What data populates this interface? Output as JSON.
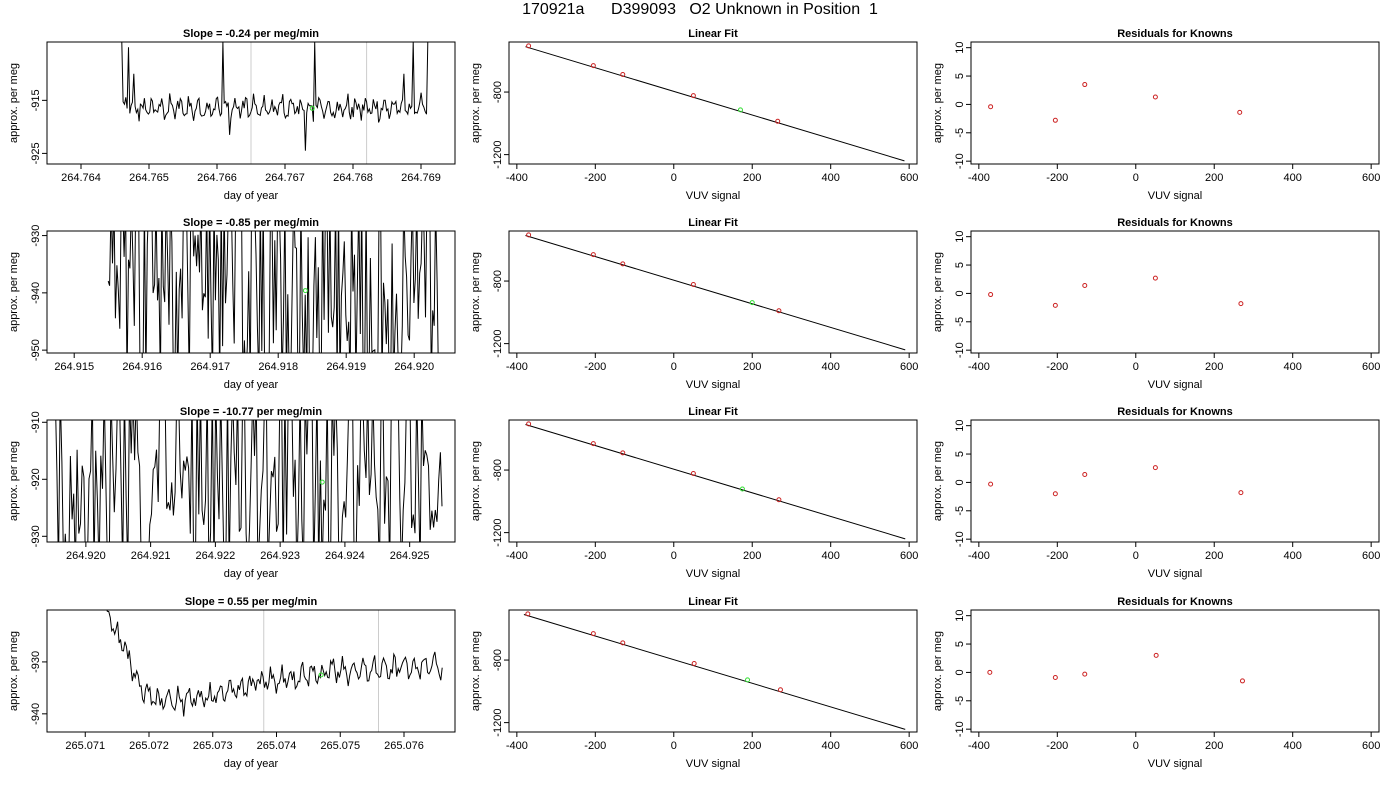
{
  "main_title": "170921a      D399093   O2 Unknown in Position  1",
  "colors": {
    "trace": "#000000",
    "fit_line": "#000000",
    "known_points": "#cc2222",
    "unknown_point": "#33dd33",
    "window_lines": "#cccccc",
    "frame": "#000000"
  },
  "chart_data": [
    {
      "type": "line",
      "title": "Slope =  -0.24  per meg/min",
      "xlabel": "day of year",
      "ylabel": "approx. per meg",
      "xlim": [
        264.7635,
        264.7695
      ],
      "ylim": [
        -927,
        -904
      ],
      "xticks": [
        264.764,
        264.765,
        264.766,
        264.767,
        264.768,
        264.769
      ],
      "xtick_labels": [
        "264.764",
        "264.765",
        "264.766",
        "264.767",
        "264.768",
        "264.769"
      ],
      "yticks": [
        -925,
        -915
      ],
      "ytick_labels": [
        "-925",
        "-915"
      ],
      "window_lines_x": [
        264.7665,
        264.7682
      ],
      "unknown_point": {
        "x": 264.7674,
        "y": -916.5
      },
      "trace": {
        "x_start": 264.7646,
        "x_end": 264.7691,
        "base": -916.5,
        "amp": 2.2,
        "spikes": [
          [
            0.0,
            -904
          ],
          [
            0.02,
            -905
          ],
          [
            0.04,
            -910
          ],
          [
            0.33,
            -904
          ],
          [
            0.35,
            -921.5
          ],
          [
            0.6,
            -924.5
          ],
          [
            0.63,
            -904
          ],
          [
            0.92,
            -910
          ],
          [
            0.95,
            -904
          ],
          [
            1.0,
            -904
          ]
        ]
      }
    },
    {
      "type": "scatter",
      "title": "Linear Fit",
      "xlabel": "VUV signal",
      "ylabel": "approx. per meg",
      "xlim": [
        -420,
        620
      ],
      "ylim": [
        -1260,
        -480
      ],
      "xticks": [
        -400,
        -200,
        0,
        200,
        400,
        600
      ],
      "xtick_labels": [
        "-400",
        "-200",
        "0",
        "200",
        "400",
        "600"
      ],
      "yticks": [
        -1200,
        -800
      ],
      "ytick_labels": [
        "-1200",
        "-800"
      ],
      "fit_line": {
        "x1": -378,
        "y1": -510,
        "x2": 588,
        "y2": -1240
      },
      "knowns": [
        {
          "x": -370,
          "y": -505
        },
        {
          "x": -205,
          "y": -631
        },
        {
          "x": -130,
          "y": -688
        },
        {
          "x": 50,
          "y": -823
        },
        {
          "x": 265,
          "y": -987
        }
      ],
      "unknown": {
        "x": 170,
        "y": -914
      }
    },
    {
      "type": "scatter",
      "title": "Residuals for Knowns",
      "xlabel": "VUV signal",
      "ylabel": "approx. per meg",
      "xlim": [
        -420,
        620
      ],
      "ylim": [
        -10.5,
        11
      ],
      "xticks": [
        -400,
        -200,
        0,
        200,
        400,
        600
      ],
      "xtick_labels": [
        "-400",
        "-200",
        "0",
        "200",
        "400",
        "600"
      ],
      "yticks": [
        -10,
        -5,
        0,
        5,
        10
      ],
      "ytick_labels": [
        "-10",
        "-5",
        "0",
        "5",
        "10"
      ],
      "knowns": [
        {
          "x": -370,
          "y": -0.4
        },
        {
          "x": -205,
          "y": -2.8
        },
        {
          "x": -130,
          "y": 3.5
        },
        {
          "x": 50,
          "y": 1.3
        },
        {
          "x": 265,
          "y": -1.4
        }
      ]
    },
    {
      "type": "line",
      "title": "Slope =  -0.85  per meg/min",
      "xlabel": "day of year",
      "ylabel": "approx. per meg",
      "xlim": [
        264.9146,
        264.9206
      ],
      "ylim": [
        -950.5,
        -929.2
      ],
      "xticks": [
        264.915,
        264.916,
        264.917,
        264.918,
        264.919,
        264.92
      ],
      "xtick_labels": [
        "264.915",
        "264.916",
        "264.917",
        "264.918",
        "264.919",
        "264.920"
      ],
      "yticks": [
        -950,
        -940,
        -930
      ],
      "ytick_labels": [
        "-950",
        "-940",
        "-930"
      ],
      "unknown_point": {
        "x": 264.9184,
        "y": -939.6
      },
      "trace": {
        "x_start": 264.9155,
        "x_end": 264.9204,
        "base": -940,
        "amp": 15,
        "spikes": []
      }
    },
    {
      "type": "scatter",
      "title": "Linear Fit",
      "xlabel": "VUV signal",
      "ylabel": "approx. per meg",
      "xlim": [
        -420,
        620
      ],
      "ylim": [
        -1260,
        -480
      ],
      "xticks": [
        -400,
        -200,
        0,
        200,
        400,
        600
      ],
      "xtick_labels": [
        "-400",
        "-200",
        "0",
        "200",
        "400",
        "600"
      ],
      "yticks": [
        -1200,
        -800
      ],
      "ytick_labels": [
        "-1200",
        "-800"
      ],
      "fit_line": {
        "x1": -378,
        "y1": -509,
        "x2": 590,
        "y2": -1240
      },
      "knowns": [
        {
          "x": -370,
          "y": -505
        },
        {
          "x": -205,
          "y": -631
        },
        {
          "x": -130,
          "y": -690
        },
        {
          "x": 50,
          "y": -822
        },
        {
          "x": 268,
          "y": -990
        }
      ],
      "unknown": {
        "x": 200,
        "y": -938
      }
    },
    {
      "type": "scatter",
      "title": "Residuals for Knowns",
      "xlabel": "VUV signal",
      "ylabel": "approx. per meg",
      "xlim": [
        -420,
        620
      ],
      "ylim": [
        -10.5,
        11
      ],
      "xticks": [
        -400,
        -200,
        0,
        200,
        400,
        600
      ],
      "xtick_labels": [
        "-400",
        "-200",
        "0",
        "200",
        "400",
        "600"
      ],
      "yticks": [
        -10,
        -5,
        0,
        5,
        10
      ],
      "ytick_labels": [
        "-10",
        "-5",
        "0",
        "5",
        "10"
      ],
      "knowns": [
        {
          "x": -370,
          "y": -0.2
        },
        {
          "x": -205,
          "y": -2.1
        },
        {
          "x": -130,
          "y": 1.4
        },
        {
          "x": 50,
          "y": 2.7
        },
        {
          "x": 268,
          "y": -1.8
        }
      ]
    },
    {
      "type": "line",
      "title": "Slope =  -10.77  per meg/min",
      "xlabel": "day of year",
      "ylabel": "approx. per meg",
      "xlim": [
        264.9194,
        264.9257
      ],
      "ylim": [
        -931,
        -909.6
      ],
      "xticks": [
        264.92,
        264.921,
        264.922,
        264.923,
        264.924,
        264.925
      ],
      "xtick_labels": [
        "264.920",
        "264.921",
        "264.922",
        "264.923",
        "264.924",
        "264.925"
      ],
      "yticks": [
        -930,
        -920,
        -910
      ],
      "ytick_labels": [
        "-930",
        "-920",
        "-910"
      ],
      "unknown_point": {
        "x": 264.92365,
        "y": -920.5
      },
      "trace": {
        "x_start": 264.9195,
        "x_end": 264.9255,
        "base": -922,
        "amp": 11,
        "spikes": []
      }
    },
    {
      "type": "scatter",
      "title": "Linear Fit",
      "xlabel": "VUV signal",
      "ylabel": "approx. per meg",
      "xlim": [
        -420,
        620
      ],
      "ylim": [
        -1260,
        -480
      ],
      "xticks": [
        -400,
        -200,
        0,
        200,
        400,
        600
      ],
      "xtick_labels": [
        "-400",
        "-200",
        "0",
        "200",
        "400",
        "600"
      ],
      "yticks": [
        -1200,
        -800
      ],
      "ytick_labels": [
        "-1200",
        "-800"
      ],
      "fit_line": {
        "x1": -378,
        "y1": -509,
        "x2": 590,
        "y2": -1240
      },
      "knowns": [
        {
          "x": -370,
          "y": -505
        },
        {
          "x": -205,
          "y": -631
        },
        {
          "x": -130,
          "y": -690
        },
        {
          "x": 50,
          "y": -822
        },
        {
          "x": 268,
          "y": -990
        }
      ],
      "unknown": {
        "x": 175,
        "y": -921
      }
    },
    {
      "type": "scatter",
      "title": "Residuals for Knowns",
      "xlabel": "VUV signal",
      "ylabel": "approx. per meg",
      "xlim": [
        -420,
        620
      ],
      "ylim": [
        -10.5,
        11
      ],
      "xticks": [
        -400,
        -200,
        0,
        200,
        400,
        600
      ],
      "xtick_labels": [
        "-400",
        "-200",
        "0",
        "200",
        "400",
        "600"
      ],
      "yticks": [
        -10,
        -5,
        0,
        5,
        10
      ],
      "ytick_labels": [
        "-10",
        "-5",
        "0",
        "5",
        "10"
      ],
      "knowns": [
        {
          "x": -370,
          "y": -0.3
        },
        {
          "x": -205,
          "y": -2.0
        },
        {
          "x": -130,
          "y": 1.4
        },
        {
          "x": 50,
          "y": 2.6
        },
        {
          "x": 268,
          "y": -1.8
        }
      ]
    },
    {
      "type": "line",
      "title": "Slope =  0.55  per meg/min",
      "xlabel": "day of year",
      "ylabel": "approx. per meg",
      "xlim": [
        265.0704,
        265.0768
      ],
      "ylim": [
        -943.5,
        -920
      ],
      "xticks": [
        265.071,
        265.072,
        265.073,
        265.074,
        265.075,
        265.076
      ],
      "xtick_labels": [
        "265.071",
        "265.072",
        "265.073",
        "265.074",
        "265.075",
        "265.076"
      ],
      "yticks": [
        -940,
        -930
      ],
      "ytick_labels": [
        "-940",
        "-930"
      ],
      "window_lines_x": [
        265.0738,
        265.0756
      ],
      "unknown_point": {
        "x": 265.0747,
        "y": -932.5
      },
      "trace": {
        "x_start": 265.0713,
        "x_end": 265.0766,
        "drift": [
          [
            0.0,
            -920
          ],
          [
            0.05,
            -926
          ],
          [
            0.1,
            -934
          ],
          [
            0.15,
            -937.5
          ],
          [
            0.3,
            -937
          ],
          [
            0.45,
            -934
          ],
          [
            0.65,
            -932
          ],
          [
            0.8,
            -931.5
          ],
          [
            1.0,
            -930.5
          ]
        ],
        "amp": 2.3,
        "spikes": []
      }
    },
    {
      "type": "scatter",
      "title": "Linear Fit",
      "xlabel": "VUV signal",
      "ylabel": "approx. per meg",
      "xlim": [
        -420,
        620
      ],
      "ylim": [
        -1260,
        -480
      ],
      "xticks": [
        -400,
        -200,
        0,
        200,
        400,
        600
      ],
      "xtick_labels": [
        "-400",
        "-200",
        "0",
        "200",
        "400",
        "600"
      ],
      "yticks": [
        -1200,
        -800
      ],
      "ytick_labels": [
        "-1200",
        "-800"
      ],
      "fit_line": {
        "x1": -382,
        "y1": -509,
        "x2": 590,
        "y2": -1243
      },
      "knowns": [
        {
          "x": -372,
          "y": -505
        },
        {
          "x": -205,
          "y": -631
        },
        {
          "x": -130,
          "y": -690
        },
        {
          "x": 52,
          "y": -822
        },
        {
          "x": 272,
          "y": -990
        }
      ],
      "unknown": {
        "x": 188,
        "y": -927
      }
    },
    {
      "type": "scatter",
      "title": "Residuals for Knowns",
      "xlabel": "VUV signal",
      "ylabel": "approx. per meg",
      "xlim": [
        -420,
        620
      ],
      "ylim": [
        -10.5,
        11
      ],
      "xticks": [
        -400,
        -200,
        0,
        200,
        400,
        600
      ],
      "xtick_labels": [
        "-400",
        "-200",
        "0",
        "200",
        "400",
        "600"
      ],
      "yticks": [
        -10,
        -5,
        0,
        5,
        10
      ],
      "ytick_labels": [
        "-10",
        "-5",
        "0",
        "5",
        "10"
      ],
      "knowns": [
        {
          "x": -372,
          "y": 0.0
        },
        {
          "x": -205,
          "y": -0.9
        },
        {
          "x": -130,
          "y": -0.3
        },
        {
          "x": 52,
          "y": 3.0
        },
        {
          "x": 272,
          "y": -1.5
        }
      ]
    }
  ]
}
